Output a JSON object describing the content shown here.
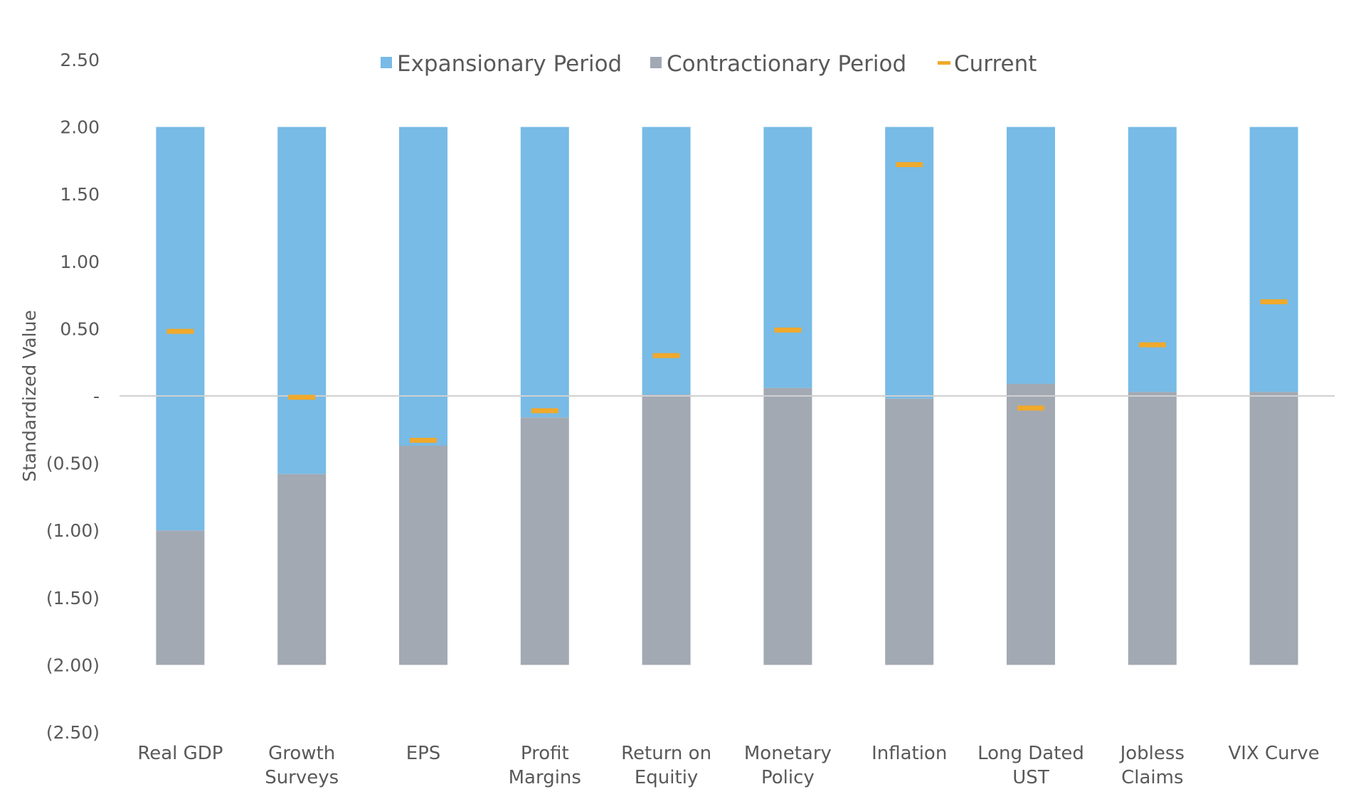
{
  "chart_data": {
    "type": "bar",
    "subtype": "stacked-range-with-marker",
    "ylabel": "Standardized Value",
    "ylim": [
      -2.5,
      2.5
    ],
    "y_ticks": [
      2.5,
      2.0,
      1.5,
      1.0,
      0.5,
      0,
      -0.5,
      -1.0,
      -1.5,
      -2.0,
      -2.5
    ],
    "y_tick_labels": [
      "2.50",
      "2.00",
      "1.50",
      "1.00",
      "0.50",
      "-",
      "(0.50)",
      "(1.00)",
      "(1.50)",
      "(2.00)",
      "(2.50)"
    ],
    "categories": [
      [
        "Real GDP"
      ],
      [
        "Growth",
        "Surveys"
      ],
      [
        "EPS"
      ],
      [
        "Profit",
        "Margins"
      ],
      [
        "Return on",
        "Equitiy"
      ],
      [
        "Monetary",
        "Policy"
      ],
      [
        "Inflation"
      ],
      [
        "Long Dated",
        "UST"
      ],
      [
        "Jobless",
        "Claims"
      ],
      [
        "VIX Curve"
      ]
    ],
    "bottom": -2.0,
    "top": 2.0,
    "boundary": [
      -1.0,
      -0.58,
      -0.37,
      -0.16,
      0.01,
      0.06,
      -0.02,
      0.09,
      0.03,
      0.03
    ],
    "series": [
      {
        "name": "Expansionary Period",
        "from": "boundary",
        "to": "top",
        "color": "#77bbe6"
      },
      {
        "name": "Contractionary Period",
        "from": "bottom",
        "to": "boundary",
        "color": "#a2a9b3"
      },
      {
        "name": "Current",
        "values": [
          0.48,
          -0.01,
          -0.33,
          -0.11,
          0.3,
          0.49,
          1.72,
          -0.09,
          0.38,
          0.7
        ],
        "color": "#f0a92b"
      }
    ],
    "legend": {
      "position": "top",
      "items": [
        "Expansionary Period",
        "Contractionary Period",
        "Current"
      ]
    },
    "grid": false
  }
}
